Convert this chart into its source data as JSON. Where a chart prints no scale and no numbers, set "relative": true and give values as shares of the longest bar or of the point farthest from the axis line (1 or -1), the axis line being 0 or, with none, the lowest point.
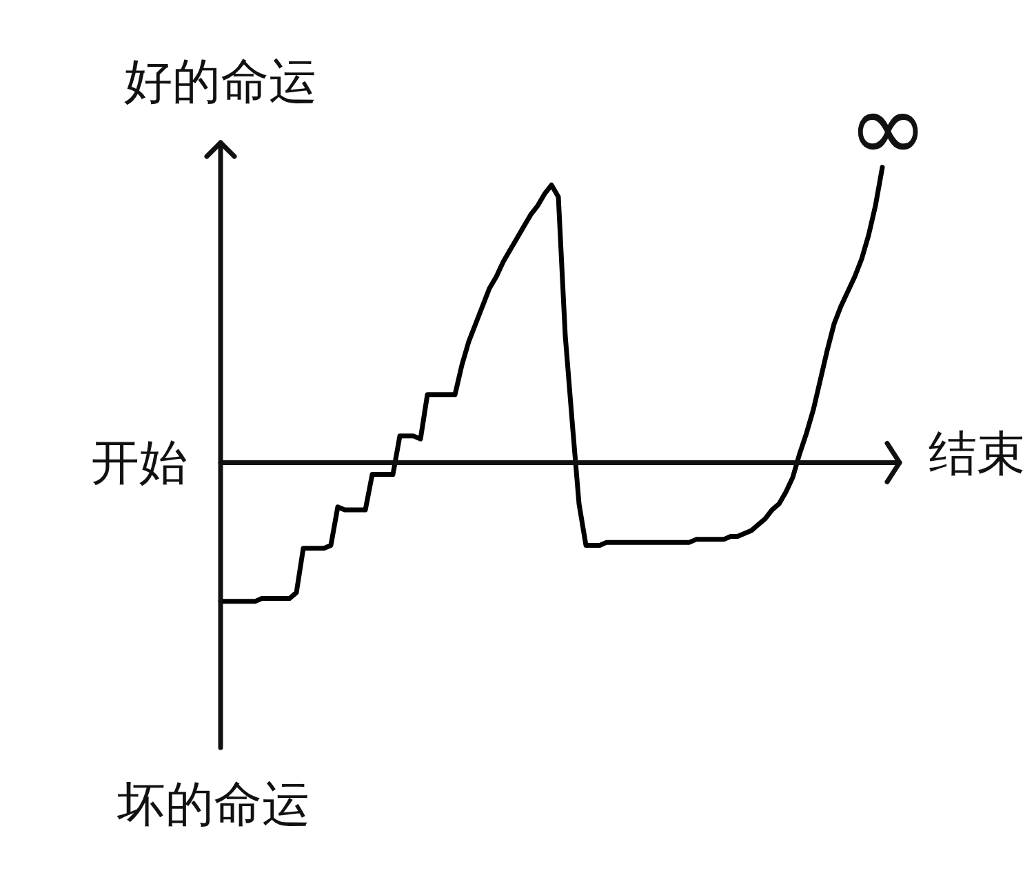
{
  "chart_data": {
    "type": "line",
    "ylabel": "好的命运",
    "xlabel": "结束",
    "annotations": [
      "坏的命运",
      "开始",
      "∞"
    ],
    "categories": [
      null,
      null,
      null,
      null,
      null,
      null,
      null,
      null,
      null,
      null,
      null,
      null,
      null,
      null,
      null,
      null,
      null,
      null,
      null,
      null,
      null,
      null,
      null,
      null,
      null,
      null,
      null,
      null,
      null,
      null,
      null,
      null,
      null,
      null,
      null,
      null,
      null,
      null,
      null,
      null,
      null,
      null,
      null,
      null,
      null,
      null,
      null,
      null,
      null,
      null,
      null,
      null,
      null,
      null,
      null,
      null,
      null,
      null,
      null,
      null,
      null,
      null,
      null,
      null,
      null,
      null,
      null,
      null,
      null,
      null,
      null,
      null,
      null,
      null,
      null,
      null,
      null,
      null,
      null,
      null,
      null,
      null,
      null,
      null,
      null,
      null,
      null,
      null,
      null,
      null,
      null,
      null,
      null,
      null,
      null,
      null,
      null
    ],
    "values": [
      -0.47,
      -0.47,
      -0.47,
      -0.47,
      -0.47,
      -0.47,
      -0.46,
      -0.46,
      -0.46,
      -0.46,
      -0.46,
      -0.44,
      -0.29,
      -0.29,
      -0.29,
      -0.29,
      -0.28,
      -0.15,
      -0.16,
      -0.16,
      -0.16,
      -0.16,
      -0.04,
      -0.04,
      -0.04,
      -0.04,
      0.09,
      0.09,
      0.09,
      0.08,
      0.23,
      0.23,
      0.23,
      0.23,
      0.23,
      0.33,
      0.41,
      0.47,
      0.53,
      0.59,
      0.63,
      0.68,
      0.72,
      0.76,
      0.8,
      0.84,
      0.87,
      0.91,
      0.94,
      0.9,
      0.43,
      0.14,
      -0.14,
      -0.28,
      -0.28,
      -0.28,
      -0.27,
      -0.27,
      -0.27,
      -0.27,
      -0.27,
      -0.27,
      -0.27,
      -0.27,
      -0.27,
      -0.27,
      -0.27,
      -0.27,
      -0.27,
      -0.26,
      -0.26,
      -0.26,
      -0.26,
      -0.26,
      -0.25,
      -0.25,
      -0.24,
      -0.23,
      -0.21,
      -0.19,
      -0.16,
      -0.14,
      -0.1,
      -0.05,
      0.03,
      0.1,
      0.18,
      0.28,
      0.38,
      0.47,
      0.53,
      0.58,
      0.63,
      0.69,
      0.77,
      0.87,
      1.0
    ],
    "color": "#000000",
    "relative": true,
    "tick_labels": false,
    "marker": "none"
  }
}
